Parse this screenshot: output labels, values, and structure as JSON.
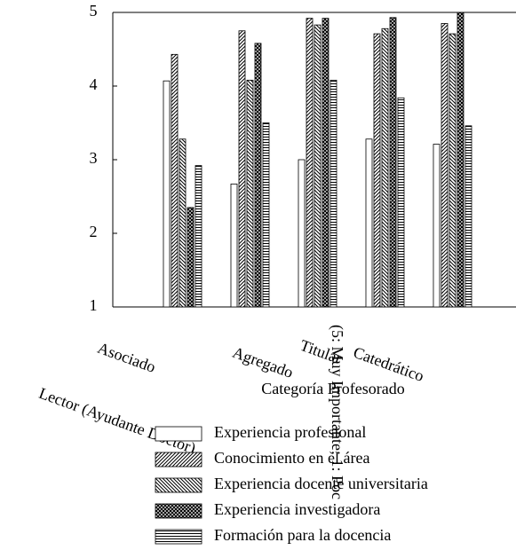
{
  "chart_data": {
    "type": "bar",
    "y_label": "(5: Muy Importante; 1: Poc",
    "x_label": "Categoría Profesorado",
    "categories": [
      "Asociado",
      "Lector (Ayudante Doctor)",
      "Agregado",
      "Titular",
      "Catedrático"
    ],
    "series": [
      {
        "name": "Experiencia profesional",
        "color": "#000000",
        "pattern": "none",
        "values": [
          4.07,
          2.67,
          3.0,
          3.28,
          3.21
        ]
      },
      {
        "name": "Conocimiento en el área",
        "color": "#000000",
        "pattern": "forward-diagonal",
        "values": [
          4.43,
          4.75,
          4.92,
          4.71,
          4.85
        ]
      },
      {
        "name": "Experiencia docente universitaria",
        "color": "#000000",
        "pattern": "back-diagonal",
        "values": [
          3.28,
          4.08,
          4.83,
          4.78,
          4.71
        ]
      },
      {
        "name": "Experiencia investigadora",
        "color": "#000000",
        "pattern": "crosshatch",
        "values": [
          2.35,
          4.58,
          4.92,
          4.93,
          5.0
        ]
      },
      {
        "name": "Formación para la docencia",
        "color": "#000000",
        "pattern": "horizontal",
        "values": [
          2.92,
          3.5,
          4.08,
          3.84,
          3.46
        ]
      }
    ],
    "ylim": [
      1,
      5
    ],
    "yticks": [
      1,
      2,
      3,
      4,
      5
    ],
    "grid": false
  }
}
